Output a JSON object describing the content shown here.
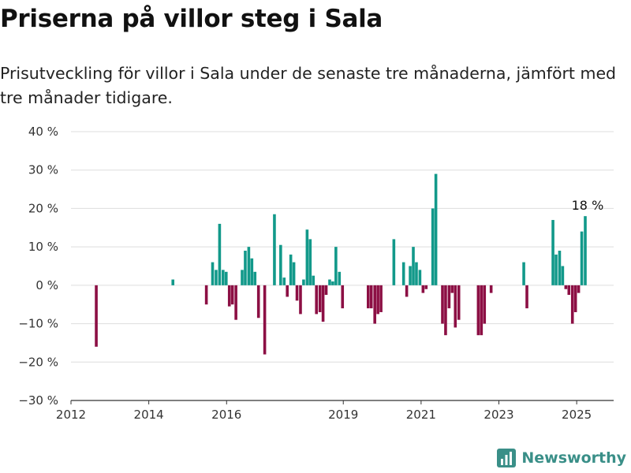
{
  "title": "Priserna på villor steg i Sala",
  "subtitle": "Prisutveckling för villor i Sala under de senaste tre månaderna, jämfört med tre månader tidigare.",
  "brand": "Newsworthy",
  "colors": {
    "positive": "#12998a",
    "negative": "#8c0f44",
    "grid": "#dddddd",
    "axis": "#333333",
    "brand": "#3a8f88"
  },
  "chart_data": {
    "type": "bar",
    "title": "Priserna på villor steg i Sala",
    "subtitle": "Prisutveckling för villor i Sala under de senaste tre månaderna, jämfört med tre månader tidigare.",
    "xlabel": "",
    "ylabel": "",
    "ylim": [
      -30,
      40
    ],
    "xlim": [
      2012,
      2025.95
    ],
    "y_ticks": [
      -30,
      -20,
      -10,
      0,
      10,
      20,
      30,
      40
    ],
    "y_tick_labels": [
      "−30 %",
      "−20 %",
      "−10 %",
      "0 %",
      "10 %",
      "20 %",
      "30 %",
      "40 %"
    ],
    "x_ticks": [
      2012,
      2014,
      2016,
      2019,
      2021,
      2023,
      2025
    ],
    "grid": true,
    "annotation": {
      "x": 2025.28,
      "y": 18,
      "label": "18 %"
    },
    "points": [
      {
        "x": 2012.65,
        "y": -16
      },
      {
        "x": 2014.62,
        "y": 1.5
      },
      {
        "x": 2015.48,
        "y": -5
      },
      {
        "x": 2015.64,
        "y": 6
      },
      {
        "x": 2015.73,
        "y": 4
      },
      {
        "x": 2015.82,
        "y": 16
      },
      {
        "x": 2015.91,
        "y": 4
      },
      {
        "x": 2015.99,
        "y": 3.5
      },
      {
        "x": 2016.07,
        "y": -5.5
      },
      {
        "x": 2016.15,
        "y": -5
      },
      {
        "x": 2016.24,
        "y": -9
      },
      {
        "x": 2016.4,
        "y": 4
      },
      {
        "x": 2016.48,
        "y": 9
      },
      {
        "x": 2016.57,
        "y": 10
      },
      {
        "x": 2016.65,
        "y": 7
      },
      {
        "x": 2016.73,
        "y": 3.5
      },
      {
        "x": 2016.82,
        "y": -8.5
      },
      {
        "x": 2016.98,
        "y": -18
      },
      {
        "x": 2017.23,
        "y": 18.5
      },
      {
        "x": 2017.39,
        "y": 10.5
      },
      {
        "x": 2017.48,
        "y": 2
      },
      {
        "x": 2017.56,
        "y": -3
      },
      {
        "x": 2017.65,
        "y": 8
      },
      {
        "x": 2017.73,
        "y": 6
      },
      {
        "x": 2017.81,
        "y": -4
      },
      {
        "x": 2017.9,
        "y": -7.5
      },
      {
        "x": 2017.98,
        "y": 1.5
      },
      {
        "x": 2018.07,
        "y": 14.5
      },
      {
        "x": 2018.15,
        "y": 12
      },
      {
        "x": 2018.23,
        "y": 2.5
      },
      {
        "x": 2018.31,
        "y": -7.5
      },
      {
        "x": 2018.4,
        "y": -7
      },
      {
        "x": 2018.48,
        "y": -9.5
      },
      {
        "x": 2018.56,
        "y": -2.5
      },
      {
        "x": 2018.65,
        "y": 1.5
      },
      {
        "x": 2018.73,
        "y": 1
      },
      {
        "x": 2018.81,
        "y": 10
      },
      {
        "x": 2018.9,
        "y": 3.5
      },
      {
        "x": 2018.98,
        "y": -6
      },
      {
        "x": 2019.64,
        "y": -6
      },
      {
        "x": 2019.72,
        "y": -6
      },
      {
        "x": 2019.81,
        "y": -10
      },
      {
        "x": 2019.89,
        "y": -7.5
      },
      {
        "x": 2019.97,
        "y": -7
      },
      {
        "x": 2020.3,
        "y": 12
      },
      {
        "x": 2020.55,
        "y": 6
      },
      {
        "x": 2020.63,
        "y": -3
      },
      {
        "x": 2020.72,
        "y": 5
      },
      {
        "x": 2020.8,
        "y": 10
      },
      {
        "x": 2020.88,
        "y": 6
      },
      {
        "x": 2020.97,
        "y": 4
      },
      {
        "x": 2021.05,
        "y": -2
      },
      {
        "x": 2021.13,
        "y": -1
      },
      {
        "x": 2021.3,
        "y": 20
      },
      {
        "x": 2021.38,
        "y": 29
      },
      {
        "x": 2021.55,
        "y": -10
      },
      {
        "x": 2021.63,
        "y": -13
      },
      {
        "x": 2021.72,
        "y": -6
      },
      {
        "x": 2021.8,
        "y": -2
      },
      {
        "x": 2021.88,
        "y": -11
      },
      {
        "x": 2021.97,
        "y": -9
      },
      {
        "x": 2022.47,
        "y": -13
      },
      {
        "x": 2022.55,
        "y": -13
      },
      {
        "x": 2022.63,
        "y": -10
      },
      {
        "x": 2022.8,
        "y": -2
      },
      {
        "x": 2023.64,
        "y": 6
      },
      {
        "x": 2023.72,
        "y": -6
      },
      {
        "x": 2024.39,
        "y": 17
      },
      {
        "x": 2024.47,
        "y": 8
      },
      {
        "x": 2024.56,
        "y": 9
      },
      {
        "x": 2024.64,
        "y": 5
      },
      {
        "x": 2024.72,
        "y": -1
      },
      {
        "x": 2024.8,
        "y": -2.5
      },
      {
        "x": 2024.89,
        "y": -10
      },
      {
        "x": 2024.97,
        "y": -7
      },
      {
        "x": 2025.05,
        "y": -2
      },
      {
        "x": 2025.13,
        "y": 14
      },
      {
        "x": 2025.22,
        "y": 18
      }
    ]
  }
}
